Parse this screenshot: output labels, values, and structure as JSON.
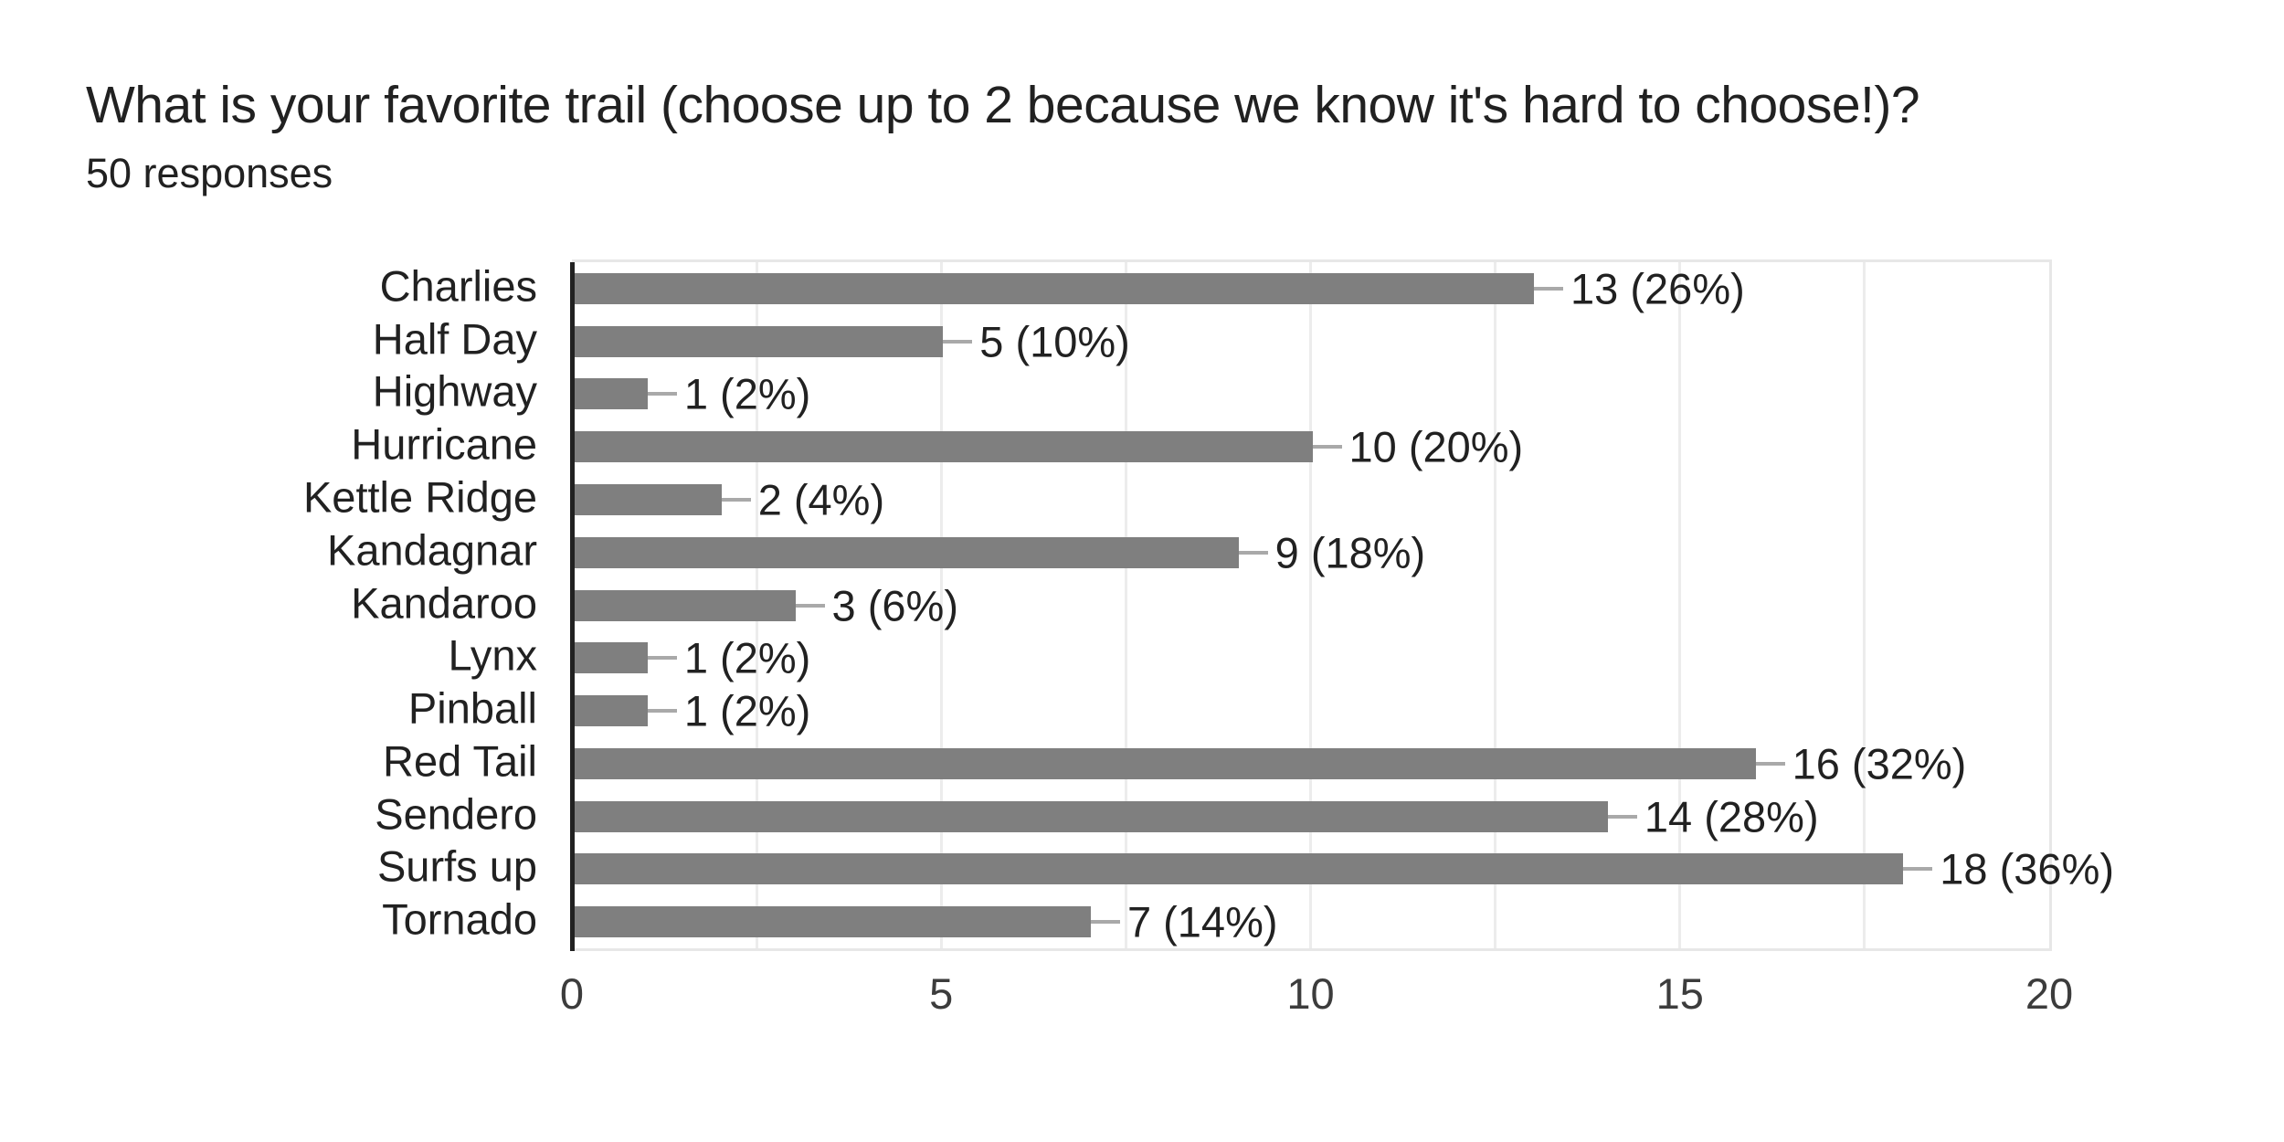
{
  "header": {
    "title": "What is your favorite trail (choose up to 2 because we know it's hard to choose!)?",
    "responses_label": "50 responses"
  },
  "chart_data": {
    "type": "bar",
    "orientation": "horizontal",
    "title": "What is your favorite trail (choose up to 2 because we know it's hard to choose!)?",
    "subtitle": "50 responses",
    "categories": [
      "Charlies",
      "Half Day",
      "Highway",
      "Hurricane",
      "Kettle Ridge",
      "Kandagnar",
      "Kandaroo",
      "Lynx",
      "Pinball",
      "Red Tail",
      "Sendero",
      "Surfs up",
      "Tornado"
    ],
    "values": [
      13,
      5,
      1,
      10,
      2,
      9,
      3,
      1,
      1,
      16,
      14,
      18,
      7
    ],
    "percentages": [
      26,
      10,
      2,
      20,
      4,
      18,
      6,
      2,
      2,
      32,
      28,
      36,
      14
    ],
    "value_labels": [
      "13 (26%)",
      "5 (10%)",
      "1 (2%)",
      "10 (20%)",
      "2 (4%)",
      "9 (18%)",
      "3 (6%)",
      "1 (2%)",
      "1 (2%)",
      "16 (32%)",
      "14 (28%)",
      "18 (36%)",
      "7 (14%)"
    ],
    "xlabel": "",
    "ylabel": "",
    "xlim": [
      0,
      20
    ],
    "xticks": [
      0,
      5,
      10,
      15,
      20
    ],
    "gridline_step": 2.5,
    "grid": true,
    "legend": "none",
    "colors": {
      "bar": "#7f7f7f",
      "connector": "#a9a9a9",
      "axis_line": "#212121",
      "gridline": "#ececec",
      "plot_border": "#e7e7e7",
      "title_text": "#212121",
      "label_text": "#212121",
      "tick_text": "#3c3c3c"
    }
  }
}
